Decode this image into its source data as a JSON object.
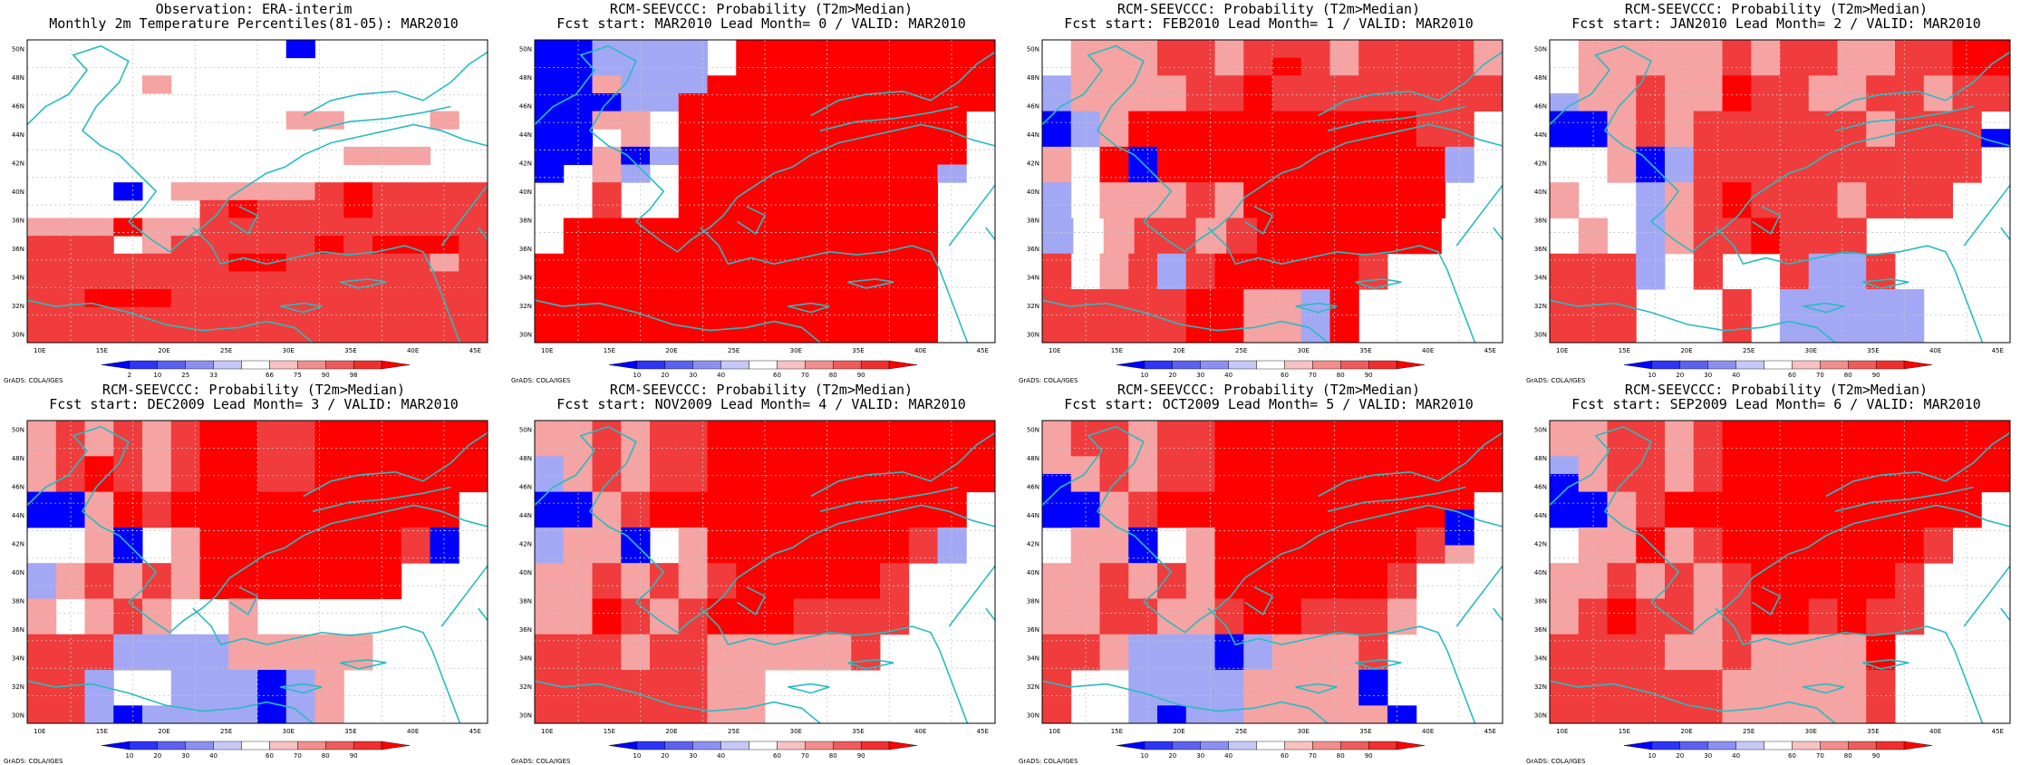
{
  "grid": {
    "lat_labels": [
      "50N",
      "48N",
      "46N",
      "44N",
      "42N",
      "40N",
      "38N",
      "36N",
      "34N",
      "32N",
      "30N"
    ],
    "lon_labels": [
      "10E",
      "15E",
      "20E",
      "25E",
      "30E",
      "35E",
      "40E",
      "45E"
    ]
  },
  "palette": {
    "white": "#ffffff",
    "red_pale": "#f5a3a3",
    "red_mid": "#f03c3c",
    "red_full": "#ff0000",
    "blue_pale": "#a3a8f5",
    "blue_mid": "#4a55ee",
    "blue_full": "#0000ff",
    "coast": "#29bcc0"
  },
  "panels": [
    {
      "title1": "Observation: ERA-interim",
      "title2": "Monthly 2m Temperature Percentiles(81-05): MAR2010",
      "credit": "GrADS: COLA/IGES",
      "cbar_labels": [
        "2",
        "10",
        "25",
        "33",
        "66",
        "75",
        "90",
        "98"
      ],
      "cells": [
        "wwwwwwwwwBwwwwww",
        "wwwwwwwwwwwwwwww",
        "wwwwpwwwwwwwwwww",
        "wwwwwwwwwwwwwwww",
        "wwwwwwwwwppwwwpw",
        "wwwwwwwwwwwwwwww",
        "wwwwwwwwwwwpppww",
        "wwwwwwwwwwwwwwww",
        "wwwBwppppprRrrrr",
        "wwwwwwrRrrrRrrrr",
        "pppRpprrrrrrrrrr",
        "rrrwprrrrrRrRRRr",
        "rrrrrrrRRrrrrrpr",
        "rrrrrrrrrrrrrrrr",
        "rrRRRrrrrrrrrrrr",
        "rrrrrrrrrrrrrrrr",
        "rrrrrrrrrrrrrrrr"
      ]
    },
    {
      "title1": "RCM-SEEVCCC: Probability (T2m>Median)",
      "title2": "Fcst start: MAR2010  Lead Month= 0 / VALID: MAR2010",
      "credit": "GrADS: COLA/IGES",
      "cbar_labels": [
        "10",
        "20",
        "30",
        "40",
        "60",
        "70",
        "80",
        "90"
      ],
      "cells": [
        "BBbbbbwRRRRRRRRR",
        "BBbbbbwRRRRRRRRR",
        "BBpbbbRRRRRRRRRR",
        "BBBbbRRRRRRRRRRR",
        "BBppwRRRRRRRRRRw",
        "BBwpwRRRRRRRRRRw",
        "BBpBbRRRRRRRRRRw",
        "BwpbwRRRRRRRRRbw",
        "wwrwwRRRRRRRRRww",
        "wwrwwRRRRRRRRRww",
        "wRRRRRRRRRRRRRww",
        "wRRRRRRRRRRRRRww",
        "RRRRRRRRRRRRRRww",
        "RRRRRRRRRRRRRRww",
        "RRRRRRRRRRRRRRww",
        "RRRRRRRRRRRRRRww",
        "RRRRRRRRRRRRRRww"
      ]
    },
    {
      "title1": "RCM-SEEVCCC: Probability (T2m>Median)",
      "title2": "Fcst start: FEB2010  Lead Month= 1 / VALID: MAR2010",
      "credit": "GrADS: COLA/IGES",
      "cbar_labels": [
        "10",
        "20",
        "30",
        "40",
        "60",
        "70",
        "80",
        "90"
      ],
      "cells": [
        "wppprrprrrprrrrp",
        "wppprrprRrprrrrp",
        "bpppprrRrrrrrrrr",
        "bpppprrRrrrrrrrr",
        "BbpRRRRRRRRRRrrw",
        "BbpRRRRRRRRRRrrw",
        "pwRBRRRRRRRRRRbw",
        "pwRBRRRRRRRRRRbw",
        "bwppprpRRRRRRRww",
        "bwppprpRRRRRRRww",
        "bwprrprRRRRRRww",
        "bwprrprRRRRRRww",
        "rwprbrRRRRRrwwww",
        "rwprbrRRRRRrwwww",
        "rrrrrRRppbRwwwww",
        "rrrrrRRppbRwwwww",
        "rrrrrRRppbRwwwww"
      ]
    },
    {
      "title1": "RCM-SEEVCCC: Probability (T2m>Median)",
      "title2": "Fcst start: JAN2010  Lead Month= 2 / VALID: MAR2010",
      "credit": "GrADS: COLA/IGES",
      "cbar_labels": [
        "10",
        "20",
        "30",
        "40",
        "60",
        "70",
        "80",
        "90"
      ],
      "cells": [
        "wppppprprrpprrRR",
        "wppppprprrpprrRR",
        "wpprppRrrpprrprr",
        "bpprppRrrpprrprr",
        "BBprprrrrrrprrrw",
        "BBprprrrrrrprrrB",
        "wwpBbrrrrrrrrrrw",
        "wwpBbrrrrrrrrrrw",
        "pwwbprRrrrprrrww",
        "pwwbprRrrrprrrww",
        "wpwbprrRrrrwwwww",
        "wpwbprrRrrrwwwww",
        "rrrbwrwwrbbrwwww",
        "rrrbwrwwrbbrwwww",
        "rrrwwwrwbbbbbwww",
        "rrrwwwrwbbbbbwww",
        "rrrwwwrwbbbbbwww"
      ]
    },
    {
      "title1": "RCM-SEEVCCC: Probability (T2m>Median)",
      "title2": "Fcst start: DEC2009  Lead Month= 3 / VALID: MAR2010",
      "credit": "GrADS: COLA/IGES",
      "cbar_labels": [
        "10",
        "20",
        "30",
        "40",
        "60",
        "70",
        "80",
        "90"
      ],
      "cells": [
        "prprprRRrrRRRRRR",
        "prprprRRrrRRRRRR",
        "prRrprRRrrRRRRRR",
        "prRrprRRrrRRRRRR",
        "BBpRrRRRRRRRRRRw",
        "BBpRrRRRRRRRRRRw",
        "wwpBwpRRRRRRRrBw",
        "wwpBwpRRRRRRRrBw",
        "bprprpRRRRRRRwww",
        "bprprpRRRRRRRwww",
        "pwprpwwpwwwwwwww",
        "pwprpwwpwwwwwwww",
        "rrrbbbbpppppwwww",
        "rrrbbbbpppppwwww",
        "rrbwwbbbBbpwwwww",
        "rrbwwbbbBbpwwwww",
        "rrbBbbbbBbpwwwww"
      ]
    },
    {
      "title1": "RCM-SEEVCCC: Probability (T2m>Median)",
      "title2": "Fcst start: NOV2009  Lead Month= 4 / VALID: MAR2010",
      "credit": "GrADS: COLA/IGES",
      "cbar_labels": [
        "10",
        "20",
        "30",
        "40",
        "60",
        "70",
        "80",
        "90"
      ],
      "cells": [
        "pprprrRRRRRRRRRR",
        "pprprrRRRRRRRRRR",
        "bprprrRRRRRRRRRR",
        "bprprrRRRRRRRRRR",
        "BBprRRRRRRRRRRRw",
        "BBprRRRRRRRRRRRw",
        "bppBwpRRRRRRRrbw",
        "bppBwpRRRRRRRrbw",
        "pprprprRRRRRrwww",
        "pprprprRRRRRrwww",
        "ppRrprRRRrrrrwww",
        "ppRrprRRRrrrrwww",
        "rrrprrppppprwwww",
        "rrrprrppppprwwww",
        "rrrrrrppwwwwwwww",
        "rrrrrrppwwwwwwww",
        "rrrrrrppwwwwwwww"
      ]
    },
    {
      "title1": "RCM-SEEVCCC: Probability (T2m>Median)",
      "title2": "Fcst start: OCT2009  Lead Month= 5 / VALID: MAR2010",
      "credit": "GrADS: COLA/IGES",
      "cbar_labels": [
        "10",
        "20",
        "30",
        "40",
        "60",
        "70",
        "80",
        "90"
      ],
      "cells": [
        "prrprrRRRRRRRRRR",
        "prrprrRRRRRRRRRR",
        "pprprrRRRRRRRRRR",
        "BprprrRRRRRRRRRR",
        "BBprRRRRRRRRRRRw",
        "BBprRRRRRRRRRRBw",
        "wppBwpRRRRRRRrBw",
        "wppBwpRRRRRRRrpw",
        "pprprpRRRRRRrwww",
        "pprprpRRRRRRrwww",
        "pprrpprRRrrrpwww",
        "pprrpprRRrrrpwww",
        "rrpbbbBbppprwwww",
        "rrpbbbBbppprwwww",
        "rwwbbbbppppBwwww",
        "rwwbbbbppppBwwww",
        "rwwbBbbpppppBwww"
      ]
    },
    {
      "title1": "RCM-SEEVCCC: Probability (T2m>Median)",
      "title2": "Fcst start: SEP2009  Lead Month= 6 / VALID: MAR2010",
      "credit": "GrADS: COLA/IGES",
      "cbar_labels": [
        "10",
        "20",
        "30",
        "40",
        "60",
        "70",
        "80",
        "90"
      ],
      "cells": [
        "pprrprRRRRRRRRRR",
        "pprrprRRRRRRRRRR",
        "bprrprRRRRRRRRRR",
        "Bprrp rRRRRRRRRRR",
        "BBprRRRRRRRRRRRw",
        "BBprRRRRRRRRRRRw",
        "wppRprRRRRRRRrww",
        "wppRprRRRRRRRrww",
        "pprprprRRRRRrwww",
        "pprprprRRRRRrwww",
        "prRrrprRRrRrrwww",
        "prRrrprRRrRrrwww",
        "rrrrpprppppRwwww",
        "rrrrpprppppRwwww",
        "rrrrrrppppprwwww",
        "rrrrrrppppprwwww",
        "rrrrrrppppprwwww"
      ]
    }
  ]
}
